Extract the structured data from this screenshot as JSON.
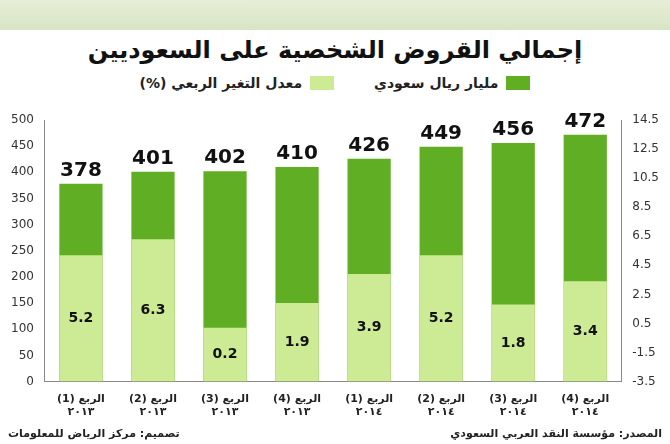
{
  "chart_data": {
    "type": "bar",
    "title": "إجمالي القروض الشخصية على السعوديين",
    "categories": [
      "الربع (1) ٢٠١٣",
      "الربع (2) ٢٠١٣",
      "الربع (3) ٢٠١٣",
      "الربع (4) ٢٠١٣",
      "الربع (1) ٢٠١٤",
      "الربع (2) ٢٠١٤",
      "الربع (3) ٢٠١٤",
      "الربع (4) ٢٠١٤"
    ],
    "series": [
      {
        "name": "مليار ريال سعودي",
        "color": "#5fae23",
        "values": [
          378,
          401,
          402,
          410,
          426,
          449,
          456,
          472
        ]
      },
      {
        "name": "معدل التغير الربعي (%)",
        "color": "#cdea95",
        "values": [
          5.2,
          6.3,
          0.2,
          1.9,
          3.9,
          5.2,
          1.8,
          3.4
        ],
        "axis": "y2"
      }
    ],
    "ylim": [
      0,
      500
    ],
    "yticks": [
      0,
      50,
      100,
      150,
      200,
      250,
      300,
      350,
      400,
      450,
      500
    ],
    "y2lim": [
      -3.5,
      14.5
    ],
    "y2ticks": [
      -3.5,
      -1.5,
      0.5,
      2.5,
      4.5,
      6.5,
      8.5,
      10.5,
      12.5,
      14.5
    ],
    "grid": false,
    "legend": "top",
    "data_labels": true,
    "annotations": [
      "المصدر: مؤسسة النقد العربي السعودي",
      "تصميم: مركز الرياض للمعلومات"
    ]
  }
}
